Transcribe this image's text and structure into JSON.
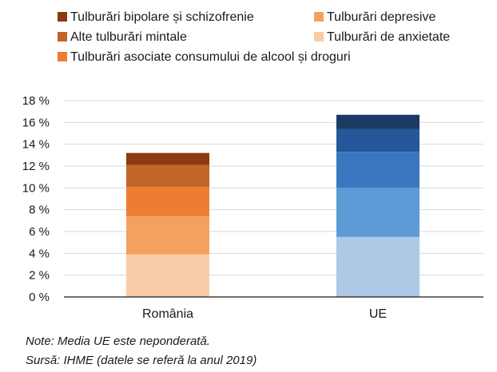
{
  "chart_data": {
    "type": "bar",
    "stacked": true,
    "categories": [
      "România",
      "UE"
    ],
    "legend": [
      {
        "label": "Tulburări bipolare și schizofrenie",
        "color": "#8b3a0f"
      },
      {
        "label": "Tulburări depresive",
        "color": "#f4a15e"
      },
      {
        "label": "Alte tulburări mintale",
        "color": "#c0642a"
      },
      {
        "label": "Tulburări de anxietate",
        "color": "#f8cca8"
      },
      {
        "label": "Tulburări asociate consumului de alcool și droguri",
        "color": "#ee7d32"
      }
    ],
    "series": [
      {
        "name": "Tulburări de anxietate",
        "values": [
          3.9,
          5.5
        ],
        "colors": [
          "#f8cca8",
          "#aec8e6"
        ]
      },
      {
        "name": "Tulburări depresive",
        "values": [
          3.5,
          4.5
        ],
        "colors": [
          "#f4a15e",
          "#5d9bd6"
        ]
      },
      {
        "name": "Tulburări asociate consumului de alcool și droguri",
        "values": [
          2.7,
          3.3
        ],
        "colors": [
          "#ee7d32",
          "#3a77c0"
        ]
      },
      {
        "name": "Alte tulburări mintale",
        "values": [
          2.0,
          2.1
        ],
        "colors": [
          "#c0642a",
          "#24589a"
        ]
      },
      {
        "name": "Tulburări bipolare și schizofrenie",
        "values": [
          1.1,
          1.3
        ],
        "colors": [
          "#8b3a0f",
          "#1c3a63"
        ]
      }
    ],
    "y_ticks": [
      "0 %",
      "2 %",
      "4 %",
      "6 %",
      "8 %",
      "10 %",
      "12 %",
      "14 %",
      "16 %",
      "18 %"
    ],
    "ylim": [
      0,
      18
    ],
    "grid": true,
    "legend_position": "top"
  },
  "notes": {
    "note": "Note: Media UE este neponderată.",
    "source": "Sursă: IHME (datele se referă la anul 2019)"
  }
}
